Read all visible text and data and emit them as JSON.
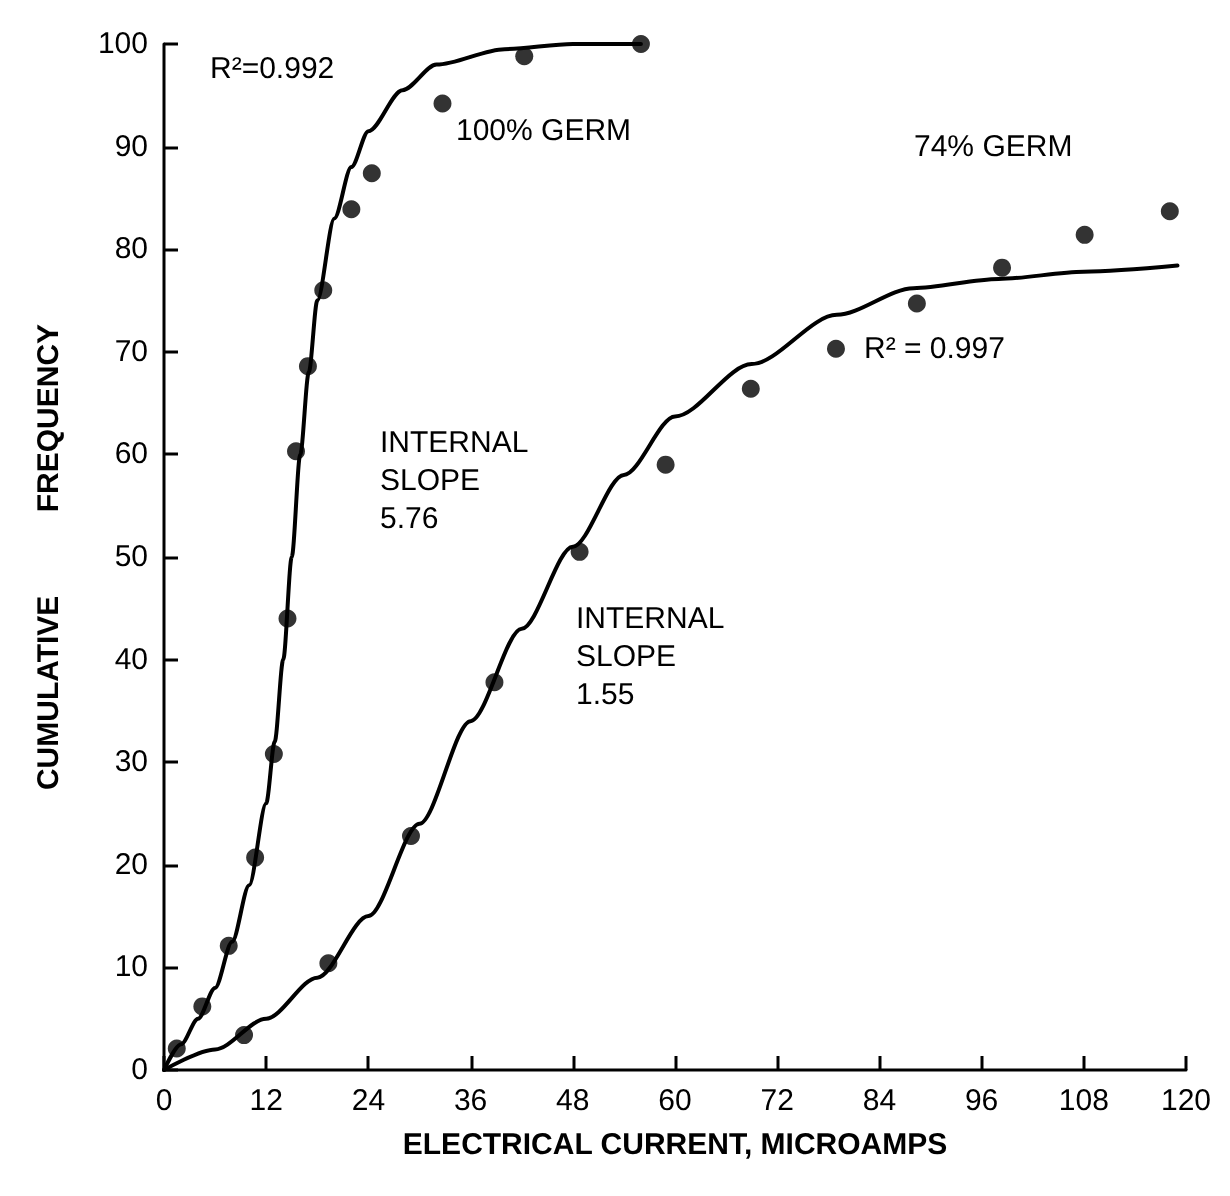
{
  "chart_data": {
    "type": "scatter",
    "xlabel": "ELECTRICAL CURRENT, MICROAMPS",
    "ylabel": "CUMULATIVE          FREQUENCY",
    "xlim": [
      0,
      120
    ],
    "xticks": [
      0,
      12,
      24,
      36,
      48,
      60,
      72,
      84,
      96,
      108,
      120
    ],
    "ylim": [
      0,
      100
    ],
    "yticks": [
      0,
      10,
      20,
      30,
      40,
      50,
      60,
      70,
      80,
      90,
      100
    ],
    "grid": false,
    "series": [
      {
        "marker": "circle",
        "color": "#000000",
        "x": [
          1.5,
          4.5,
          7.6,
          10.7,
          12.9,
          14.5,
          15.5,
          16.9,
          18.7,
          22.0,
          24.4,
          32.7,
          42.3,
          56.0
        ],
        "values": [
          2.1,
          6.2,
          12.1,
          20.7,
          30.8,
          44.0,
          60.3,
          68.6,
          76.0,
          83.9,
          87.4,
          94.2,
          98.8,
          100
        ]
      },
      {
        "marker": "circle",
        "color": "#000000",
        "x": [
          9.4,
          19.3,
          29.0,
          38.8,
          48.8,
          58.9,
          68.9,
          78.9,
          88.4,
          98.4,
          108.1,
          118.1
        ],
        "values": [
          3.4,
          10.4,
          22.8,
          37.8,
          50.5,
          59.0,
          66.4,
          70.3,
          74.7,
          78.2,
          81.4,
          83.7
        ]
      },
      {
        "type": "line",
        "marker": "none",
        "line_style": "solid",
        "color": "#000000",
        "x": [
          0,
          2,
          4,
          6,
          8,
          10,
          12,
          13,
          14,
          15,
          16,
          17,
          18,
          20,
          22,
          24,
          28,
          32,
          40,
          48,
          56
        ],
        "values": [
          0,
          2.5,
          5,
          8,
          12.5,
          18,
          26,
          32,
          40,
          50,
          60,
          68,
          75,
          83,
          88,
          91.5,
          95.5,
          98,
          99.5,
          100,
          100
        ]
      },
      {
        "type": "line",
        "marker": "none",
        "line_style": "solid",
        "color": "#000000",
        "x": [
          0,
          6,
          12,
          18,
          24,
          30,
          36,
          42,
          48,
          54,
          60,
          69,
          79,
          88,
          98,
          108,
          119
        ],
        "values": [
          0,
          2,
          5,
          9,
          15,
          24,
          34,
          43,
          51,
          58,
          63.7,
          68.8,
          73.6,
          76.2,
          77.1,
          77.8,
          78.4
        ]
      }
    ],
    "annotations": [
      "R²=0.992",
      "100% GERM",
      "74% GERM",
      "R² = 0.997",
      "INTERNAL\nSLOPE\n5.76",
      "INTERNAL\nSLOPE\n1.55"
    ]
  }
}
